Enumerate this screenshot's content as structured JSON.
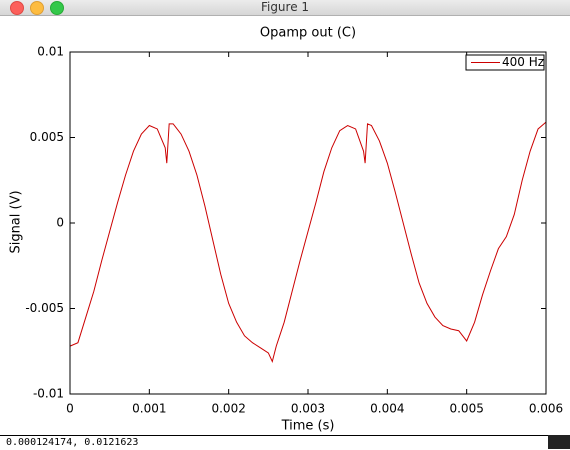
{
  "window": {
    "title": "Figure 1",
    "status": "0.000124174,  0.0121623"
  },
  "chart_data": {
    "type": "line",
    "title": "Opamp out (C)",
    "x_label": "Time (s)",
    "y_label": "Signal (V)",
    "x": [
      0,
      0.0001,
      0.0002,
      0.0003,
      0.0004,
      0.0005,
      0.0006,
      0.0007,
      0.0008,
      0.0009,
      0.001,
      0.0011,
      0.0012,
      0.00122,
      0.00125,
      0.0013,
      0.0014,
      0.0015,
      0.0016,
      0.0017,
      0.0018,
      0.0019,
      0.002,
      0.0021,
      0.0022,
      0.0023,
      0.0024,
      0.0025,
      0.00255,
      0.0026,
      0.0027,
      0.0028,
      0.0029,
      0.003,
      0.0031,
      0.0032,
      0.0033,
      0.0034,
      0.0035,
      0.0036,
      0.0037,
      0.00372,
      0.00375,
      0.0038,
      0.0039,
      0.004,
      0.0041,
      0.0042,
      0.0043,
      0.0044,
      0.0045,
      0.0046,
      0.0047,
      0.0048,
      0.0049,
      0.005,
      0.0051,
      0.0052,
      0.0053,
      0.0054,
      0.0055,
      0.0056,
      0.0057,
      0.0058,
      0.0059,
      0.006
    ],
    "series": [
      {
        "name": "400 Hz",
        "color": "#cc0000",
        "values": [
          -0.0072,
          -0.007,
          -0.0055,
          -0.004,
          -0.0022,
          -0.0005,
          0.0012,
          0.0028,
          0.0042,
          0.0052,
          0.0057,
          0.0055,
          0.0044,
          0.0035,
          0.0058,
          0.0058,
          0.0052,
          0.0042,
          0.0028,
          0.001,
          -0.001,
          -0.003,
          -0.0047,
          -0.0058,
          -0.0066,
          -0.007,
          -0.0073,
          -0.0076,
          -0.0081,
          -0.0072,
          -0.0058,
          -0.004,
          -0.0022,
          -0.0005,
          0.0012,
          0.003,
          0.0044,
          0.0054,
          0.0057,
          0.0055,
          0.0042,
          0.0035,
          0.0058,
          0.0057,
          0.0048,
          0.0035,
          0.0018,
          0,
          -0.0018,
          -0.0035,
          -0.0047,
          -0.0055,
          -0.006,
          -0.0062,
          -0.0063,
          -0.0069,
          -0.0058,
          -0.0042,
          -0.0028,
          -0.0015,
          -0.0008,
          0.0005,
          0.0025,
          0.0042,
          0.0055,
          0.0059
        ]
      }
    ],
    "xlim": [
      0,
      0.006
    ],
    "ylim": [
      -0.01,
      0.01
    ],
    "xticks": [
      0,
      0.001,
      0.002,
      0.003,
      0.004,
      0.005,
      0.006
    ],
    "yticks": [
      -0.01,
      -0.005,
      0,
      0.005,
      0.01
    ],
    "legend": "upper right"
  }
}
